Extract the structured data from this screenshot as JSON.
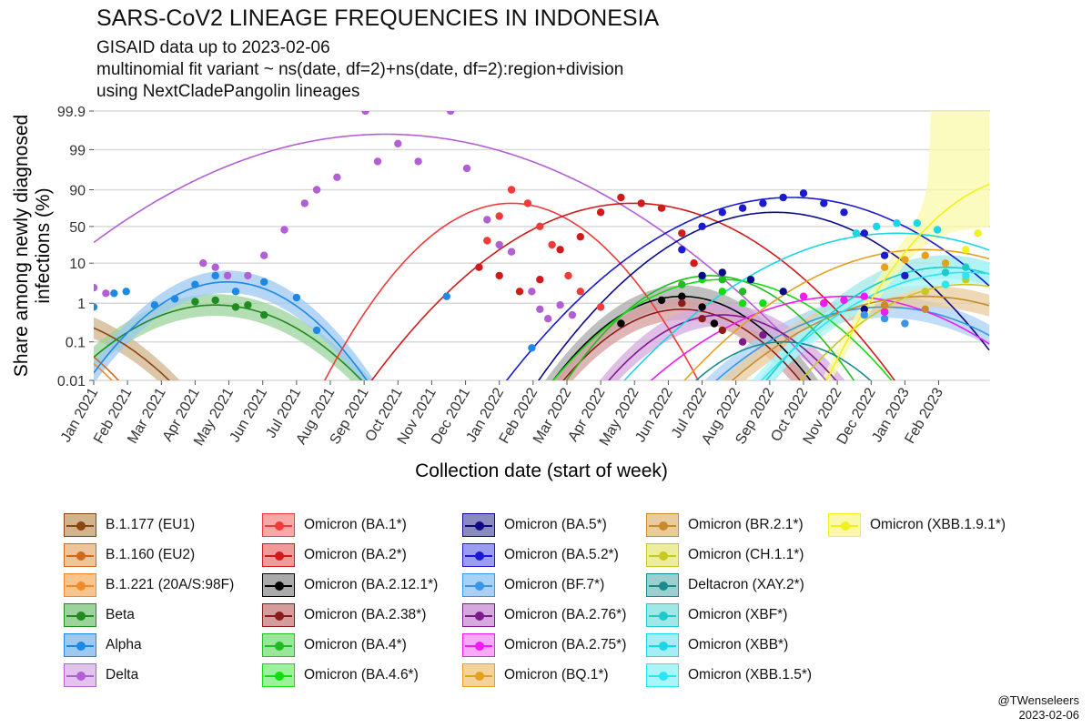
{
  "title": "SARS-CoV2 LINEAGE FREQUENCIES IN INDONESIA",
  "subtitle_lines": [
    "GISAID data up to 2023-02-06",
    "multinomial fit variant ~ ns(date, df=2)+ns(date, df=2):region+division",
    "using NextCladePangolin lineages"
  ],
  "credit": {
    "handle": "@TWenseleers",
    "date": "2023-02-06"
  },
  "chart_data": {
    "type": "line",
    "title": "SARS-CoV2 LINEAGE FREQUENCIES IN INDONESIA",
    "xlabel": "Collection date (start of week)",
    "ylabel": "Share among newly diagnosed infections (%)",
    "ylabel_lines": [
      "Share among newly diagnosed",
      "infections (%)"
    ],
    "y_scale": "logit",
    "yticks": [
      0.01,
      0.1,
      1,
      10,
      50,
      90,
      99,
      99.9
    ],
    "ytick_labels": [
      "0.01",
      "0.1",
      "1",
      "10",
      "50",
      "90",
      "99",
      "99.9"
    ],
    "xlim": [
      2021.0,
      2023.21
    ],
    "xticks": [
      2021.0,
      2021.0833,
      2021.1667,
      2021.25,
      2021.3333,
      2021.4167,
      2021.5,
      2021.5833,
      2021.6667,
      2021.75,
      2021.8333,
      2021.9167,
      2022.0,
      2022.0833,
      2022.1667,
      2022.25,
      2022.3333,
      2022.4167,
      2022.5,
      2022.5833,
      2022.6667,
      2022.75,
      2022.8333,
      2022.9167,
      2023.0,
      2023.0833
    ],
    "xtick_labels": [
      "Jan 2021",
      "Feb 2021",
      "Mar 2021",
      "Apr 2021",
      "May 2021",
      "Jun 2021",
      "Jul 2021",
      "Aug 2021",
      "Sep 2021",
      "Oct 2021",
      "Nov 2021",
      "Dec 2021",
      "Jan 2022",
      "Feb 2022",
      "Mar 2022",
      "Apr 2022",
      "May 2022",
      "Jun 2022",
      "Jul 2022",
      "Aug 2022",
      "Sep 2022",
      "Oct 2022",
      "Nov 2022",
      "Dec 2022",
      "Jan 2023",
      "Feb 2023"
    ],
    "grid": "horizontal",
    "legend_position": "bottom",
    "series": [
      {
        "name": "B.1.177 (EU1)",
        "color": "#8B4513",
        "fill": "#D2B48C",
        "peak_x": 2020.85,
        "peak_pct": 0.5,
        "width": 0.12,
        "points": [],
        "ribbon": true
      },
      {
        "name": "B.1.160 (EU2)",
        "color": "#CD6A1E",
        "fill": "#F0C49A",
        "peak_x": 2020.8,
        "peak_pct": 0.3,
        "width": 0.1,
        "points": [],
        "ribbon": false
      },
      {
        "name": "B.1.221 (20A/S:98F)",
        "color": "#F28C28",
        "fill": "#F9C58F",
        "peak_x": 2020.8,
        "peak_pct": 0.2,
        "width": 0.1,
        "points": [],
        "ribbon": false
      },
      {
        "name": "Beta",
        "color": "#1E8C1E",
        "fill": "#9BD39B",
        "peak_x": 2021.3,
        "peak_pct": 0.9,
        "width": 0.12,
        "points": [
          [
            2021.25,
            1.1
          ],
          [
            2021.3,
            1.2
          ],
          [
            2021.35,
            0.8
          ],
          [
            2021.38,
            0.9
          ],
          [
            2021.42,
            0.5
          ]
        ],
        "ribbon": true
      },
      {
        "name": "Alpha",
        "color": "#1E88E5",
        "fill": "#9CC8F2",
        "peak_x": 2021.33,
        "peak_pct": 3.5,
        "width": 0.1,
        "points": [
          [
            2021.0,
            0.8
          ],
          [
            2021.05,
            1.8
          ],
          [
            2021.08,
            2.0
          ],
          [
            2021.15,
            0.9
          ],
          [
            2021.2,
            1.3
          ],
          [
            2021.25,
            3.0
          ],
          [
            2021.3,
            5.0
          ],
          [
            2021.35,
            2.0
          ],
          [
            2021.42,
            3.5
          ],
          [
            2021.5,
            1.4
          ],
          [
            2021.55,
            0.2
          ],
          [
            2021.87,
            1.5
          ],
          [
            2022.08,
            0.07
          ]
        ],
        "ribbon": true
      },
      {
        "name": "Delta",
        "color": "#B25FD6",
        "fill": "#E3C2F0",
        "peak_x": 2021.72,
        "peak_pct": 99.6,
        "width": 0.2,
        "points": [
          [
            2021.0,
            2.5
          ],
          [
            2021.03,
            1.8
          ],
          [
            2021.27,
            10
          ],
          [
            2021.3,
            8
          ],
          [
            2021.33,
            5
          ],
          [
            2021.38,
            5
          ],
          [
            2021.42,
            15
          ],
          [
            2021.47,
            45
          ],
          [
            2021.52,
            80
          ],
          [
            2021.55,
            90
          ],
          [
            2021.6,
            95
          ],
          [
            2021.67,
            99.9
          ],
          [
            2021.7,
            98
          ],
          [
            2021.75,
            99.3
          ],
          [
            2021.8,
            98
          ],
          [
            2021.88,
            99.9
          ],
          [
            2021.92,
            97
          ],
          [
            2021.97,
            60
          ],
          [
            2022.0,
            25
          ],
          [
            2022.03,
            18
          ],
          [
            2022.08,
            2
          ],
          [
            2022.1,
            0.7
          ],
          [
            2022.12,
            0.4
          ],
          [
            2022.15,
            0.9
          ],
          [
            2022.18,
            0.5
          ]
        ],
        "ribbon": false
      },
      {
        "name": "Omicron (BA.1*)",
        "color": "#F23A3A",
        "fill": "#F9A8A8",
        "peak_x": 2022.03,
        "peak_pct": 80,
        "width": 0.1,
        "points": [
          [
            2021.97,
            30
          ],
          [
            2022.0,
            65
          ],
          [
            2022.03,
            90
          ],
          [
            2022.07,
            80
          ],
          [
            2022.1,
            50
          ],
          [
            2022.13,
            25
          ],
          [
            2022.17,
            5
          ],
          [
            2022.2,
            2
          ],
          [
            2022.25,
            0.8
          ]
        ],
        "ribbon": false
      },
      {
        "name": "Omicron (BA.2*)",
        "color": "#D11A1A",
        "fill": "#F09A9A",
        "peak_x": 2022.33,
        "peak_pct": 80,
        "width": 0.14,
        "points": [
          [
            2021.95,
            8
          ],
          [
            2022.0,
            5
          ],
          [
            2022.05,
            2
          ],
          [
            2022.1,
            4
          ],
          [
            2022.15,
            20
          ],
          [
            2022.2,
            35
          ],
          [
            2022.25,
            70
          ],
          [
            2022.3,
            85
          ],
          [
            2022.35,
            80
          ],
          [
            2022.4,
            75
          ],
          [
            2022.45,
            40
          ],
          [
            2022.48,
            10
          ]
        ],
        "ribbon": false
      },
      {
        "name": "Omicron (BA.2.12.1*)",
        "color": "#000000",
        "fill": "#AAAAAA",
        "peak_x": 2022.45,
        "peak_pct": 1.5,
        "width": 0.1,
        "points": [
          [
            2022.3,
            0.3
          ],
          [
            2022.4,
            1.2
          ],
          [
            2022.45,
            1.5
          ],
          [
            2022.5,
            0.8
          ],
          [
            2022.53,
            0.3
          ]
        ],
        "ribbon": true
      },
      {
        "name": "Omicron (BA.2.38*)",
        "color": "#8B1A1A",
        "fill": "#D49C9C",
        "peak_x": 2022.45,
        "peak_pct": 0.7,
        "width": 0.1,
        "points": [
          [
            2022.45,
            1.0
          ],
          [
            2022.5,
            0.4
          ],
          [
            2022.55,
            0.2
          ]
        ],
        "ribbon": true
      },
      {
        "name": "Omicron (BA.4*)",
        "color": "#22BB22",
        "fill": "#9AE69A",
        "peak_x": 2022.52,
        "peak_pct": 5,
        "width": 0.1,
        "points": [
          [
            2022.45,
            3
          ],
          [
            2022.5,
            5
          ],
          [
            2022.55,
            4
          ],
          [
            2022.6,
            2
          ]
        ],
        "ribbon": false
      },
      {
        "name": "Omicron (BA.4.6*)",
        "color": "#11DD11",
        "fill": "#9AF29A",
        "peak_x": 2022.55,
        "peak_pct": 4,
        "width": 0.12,
        "points": [
          [
            2022.5,
            4
          ],
          [
            2022.55,
            2
          ],
          [
            2022.6,
            1
          ],
          [
            2022.65,
            1
          ]
        ],
        "ribbon": false
      },
      {
        "name": "Omicron (BA.5*)",
        "color": "#0B0B8A",
        "fill": "#8A8ABF",
        "peak_x": 2022.68,
        "peak_pct": 70,
        "width": 0.13,
        "points": [
          [
            2022.5,
            5
          ],
          [
            2022.55,
            6
          ],
          [
            2022.62,
            4
          ],
          [
            2022.7,
            2
          ],
          [
            2022.8,
            1
          ],
          [
            2022.9,
            0.7
          ],
          [
            2022.95,
            0.6
          ]
        ],
        "ribbon": false
      },
      {
        "name": "Omicron (BA.5.2*)",
        "color": "#1A1AD1",
        "fill": "#9C9CF0",
        "peak_x": 2022.72,
        "peak_pct": 85,
        "width": 0.15,
        "points": [
          [
            2022.45,
            20
          ],
          [
            2022.5,
            50
          ],
          [
            2022.55,
            70
          ],
          [
            2022.6,
            75
          ],
          [
            2022.65,
            80
          ],
          [
            2022.7,
            85
          ],
          [
            2022.75,
            88
          ],
          [
            2022.8,
            80
          ],
          [
            2022.85,
            70
          ],
          [
            2022.9,
            40
          ],
          [
            2022.95,
            15
          ],
          [
            2023.0,
            5
          ]
        ],
        "ribbon": false
      },
      {
        "name": "Omicron (BF.7*)",
        "color": "#3A95E6",
        "fill": "#A9D0F5",
        "peak_x": 2022.95,
        "peak_pct": 0.8,
        "width": 0.14,
        "points": [
          [
            2022.9,
            0.5
          ],
          [
            2022.95,
            0.4
          ],
          [
            2023.0,
            0.3
          ]
        ],
        "ribbon": true
      },
      {
        "name": "Omicron (BA.2.76*)",
        "color": "#7B1A8B",
        "fill": "#D6A9DE",
        "peak_x": 2022.55,
        "peak_pct": 0.5,
        "width": 0.1,
        "points": [
          [
            2022.6,
            0.1
          ],
          [
            2022.65,
            0.15
          ]
        ],
        "ribbon": true
      },
      {
        "name": "Omicron (BA.2.75*)",
        "color": "#F21AF2",
        "fill": "#F9A9F9",
        "peak_x": 2022.85,
        "peak_pct": 1.5,
        "width": 0.15,
        "points": [
          [
            2022.75,
            1.5
          ],
          [
            2022.8,
            1.0
          ],
          [
            2022.85,
            1.2
          ],
          [
            2022.9,
            1.5
          ],
          [
            2022.95,
            0.6
          ]
        ],
        "ribbon": false
      },
      {
        "name": "Omicron (BQ.1*)",
        "color": "#E6A020",
        "fill": "#F5D29A",
        "peak_x": 2023.05,
        "peak_pct": 20,
        "width": 0.15,
        "points": [
          [
            2022.95,
            8
          ],
          [
            2023.0,
            12
          ],
          [
            2023.05,
            15
          ],
          [
            2023.1,
            10
          ]
        ],
        "ribbon": false
      },
      {
        "name": "Omicron (BR.2.1*)",
        "color": "#C88A2A",
        "fill": "#E9CB9C",
        "peak_x": 2023.05,
        "peak_pct": 1.5,
        "width": 0.15,
        "points": [
          [
            2022.95,
            0.9
          ],
          [
            2023.05,
            0.7
          ]
        ],
        "ribbon": true
      },
      {
        "name": "Omicron (CH.1.1*)",
        "color": "#C8C81E",
        "fill": "#EDED9E",
        "peak_x": 2023.15,
        "peak_pct": 3,
        "width": 0.12,
        "points": [
          [
            2023.05,
            2
          ],
          [
            2023.1,
            3
          ],
          [
            2023.15,
            4
          ]
        ],
        "ribbon": false
      },
      {
        "name": "Deltacron (XAY.2*)",
        "color": "#1A8B8B",
        "fill": "#9CCFCF",
        "peak_x": 2022.7,
        "peak_pct": 0.1,
        "width": 0.1,
        "points": [],
        "ribbon": false
      },
      {
        "name": "Omicron (XBF*)",
        "color": "#20C8C8",
        "fill": "#A0E8E8",
        "peak_x": 2023.1,
        "peak_pct": 8,
        "width": 0.12,
        "points": [
          [
            2023.1,
            6
          ],
          [
            2023.15,
            8
          ]
        ],
        "ribbon": true
      },
      {
        "name": "Omicron (XBB*)",
        "color": "#1AD6E6",
        "fill": "#A6EEF5",
        "peak_x": 2022.98,
        "peak_pct": 40,
        "width": 0.16,
        "points": [
          [
            2022.88,
            40
          ],
          [
            2022.93,
            50
          ],
          [
            2022.98,
            55
          ],
          [
            2023.03,
            55
          ],
          [
            2023.08,
            45
          ]
        ],
        "ribbon": false
      },
      {
        "name": "Omicron (XBB.1.5*)",
        "color": "#2AE6F2",
        "fill": "#A9F5F9",
        "peak_x": 2023.15,
        "peak_pct": 6,
        "width": 0.14,
        "points": [
          [
            2023.1,
            3
          ],
          [
            2023.15,
            5
          ]
        ],
        "ribbon": true
      },
      {
        "name": "Omicron (XBB.1.9.1*)",
        "color": "#F2F21A",
        "fill": "#F9F9A9",
        "peak_x": 2023.3,
        "peak_pct": 95,
        "width": 0.1,
        "points": [
          [
            2023.15,
            20
          ],
          [
            2023.18,
            40
          ]
        ],
        "ribbon": true
      }
    ]
  }
}
